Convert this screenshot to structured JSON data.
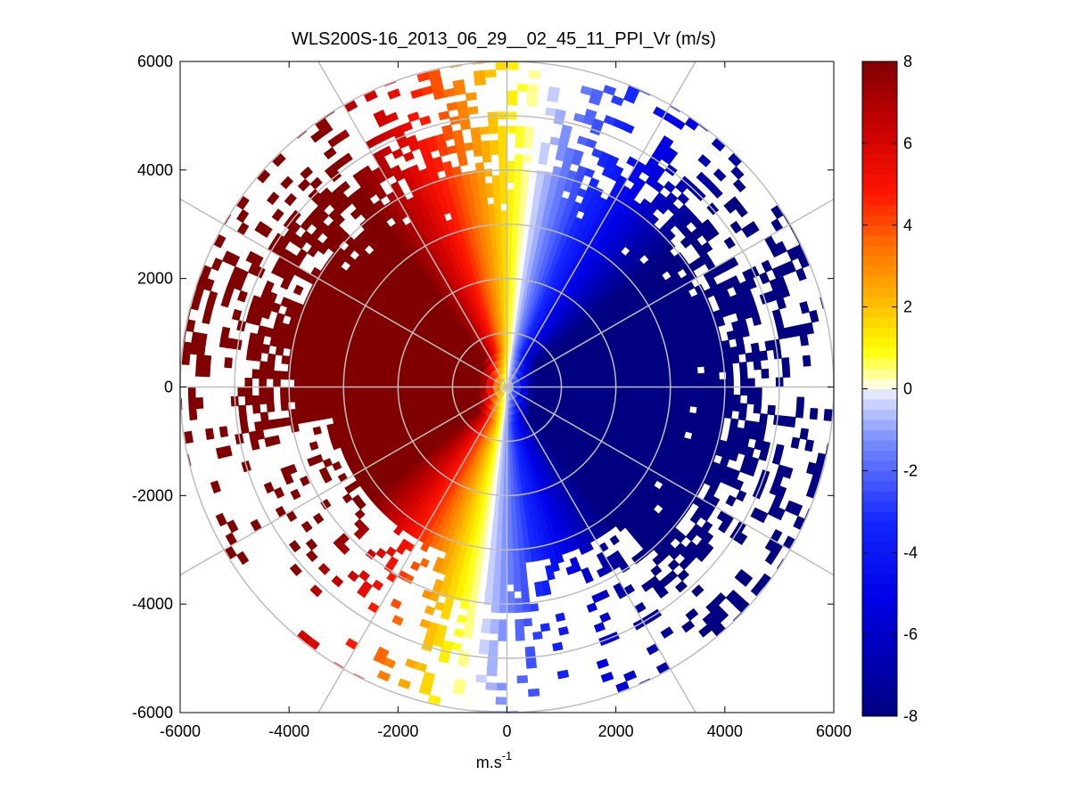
{
  "chart_data": {
    "type": "heatmap",
    "subtype": "polar-ppi",
    "title": "WLS200S-16_2013_06_29__02_45_11_PPI_Vr (m/s)",
    "xlabel": "m.s",
    "xlabel_superscript": "-1",
    "ylabel": "",
    "xlim": [
      -6000,
      6000
    ],
    "ylim": [
      -6000,
      6000
    ],
    "xticks": [
      -6000,
      -4000,
      -2000,
      0,
      2000,
      4000,
      6000
    ],
    "yticks": [
      6000,
      4000,
      2000,
      0,
      -2000,
      -4000,
      -6000
    ],
    "range_rings_m": [
      1000,
      2000,
      3000,
      4000,
      5000,
      6000
    ],
    "radial_lines_deg": [
      0,
      30,
      60,
      90,
      120,
      150,
      180,
      210,
      240,
      270,
      300,
      330
    ],
    "colorbar": {
      "min": -8,
      "max": 8,
      "ticks": [
        8,
        6,
        4,
        2,
        0,
        -2,
        -4,
        -6,
        -8
      ],
      "levels": 64,
      "colormap": "blue-white-yellow-red"
    },
    "field_description": {
      "positive_sector_deg": [
        190,
        360
      ],
      "negative_sector_deg": [
        0,
        190
      ],
      "max_range_m": 6000,
      "peak_abs_velocity": 8
    }
  }
}
